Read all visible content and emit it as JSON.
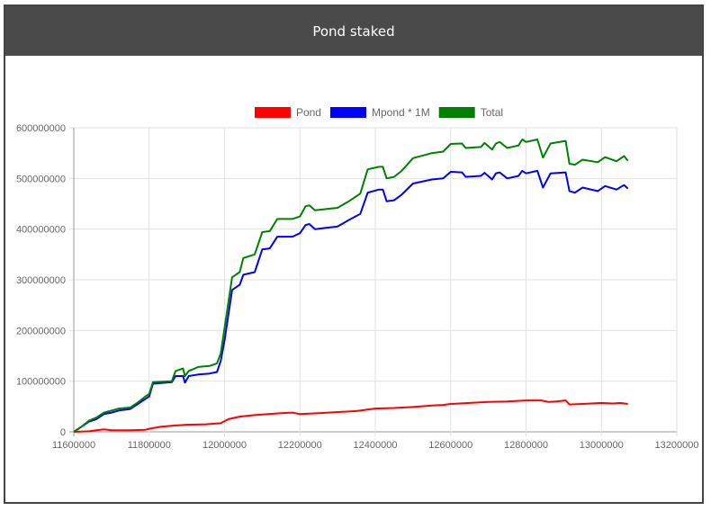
{
  "window": {
    "title": "Pond staked"
  },
  "chart_data": {
    "type": "line",
    "legend_position": "top-center",
    "grid": true,
    "xlim": [
      11600000,
      13200000
    ],
    "ylim": [
      0,
      600000000
    ],
    "x_ticks": [
      "11600000",
      "11800000",
      "12000000",
      "12200000",
      "12400000",
      "12600000",
      "12800000",
      "13000000",
      "13200000"
    ],
    "y_ticks": [
      "0",
      "100000000",
      "200000000",
      "300000000",
      "400000000",
      "500000000",
      "600000000"
    ],
    "series": [
      {
        "name": "Pond",
        "color": "#ff0000",
        "points": [
          [
            11600000,
            0
          ],
          [
            11640000,
            1000000
          ],
          [
            11660000,
            3000000
          ],
          [
            11680000,
            5000000
          ],
          [
            11700000,
            3000000
          ],
          [
            11750000,
            3000000
          ],
          [
            11790000,
            4000000
          ],
          [
            11800000,
            6000000
          ],
          [
            11830000,
            10000000
          ],
          [
            11860000,
            12000000
          ],
          [
            11900000,
            14000000
          ],
          [
            11950000,
            15000000
          ],
          [
            11990000,
            17000000
          ],
          [
            12010000,
            25000000
          ],
          [
            12040000,
            30000000
          ],
          [
            12080000,
            33000000
          ],
          [
            12100000,
            34000000
          ],
          [
            12150000,
            37000000
          ],
          [
            12180000,
            38000000
          ],
          [
            12200000,
            35000000
          ],
          [
            12250000,
            37000000
          ],
          [
            12300000,
            39000000
          ],
          [
            12350000,
            41000000
          ],
          [
            12400000,
            46000000
          ],
          [
            12450000,
            47000000
          ],
          [
            12500000,
            49000000
          ],
          [
            12550000,
            52000000
          ],
          [
            12580000,
            53000000
          ],
          [
            12600000,
            55000000
          ],
          [
            12650000,
            57000000
          ],
          [
            12700000,
            59000000
          ],
          [
            12750000,
            60000000
          ],
          [
            12800000,
            62000000
          ],
          [
            12840000,
            62000000
          ],
          [
            12860000,
            59000000
          ],
          [
            12880000,
            60000000
          ],
          [
            12905000,
            62000000
          ],
          [
            12915000,
            54000000
          ],
          [
            12950000,
            55000000
          ],
          [
            13000000,
            57000000
          ],
          [
            13030000,
            56000000
          ],
          [
            13050000,
            57000000
          ],
          [
            13070000,
            55000000
          ]
        ]
      },
      {
        "name": "Mpond * 1M",
        "color": "#0000ff",
        "points": [
          [
            11600000,
            0
          ],
          [
            11620000,
            10000000
          ],
          [
            11640000,
            20000000
          ],
          [
            11660000,
            25000000
          ],
          [
            11680000,
            35000000
          ],
          [
            11700000,
            38000000
          ],
          [
            11720000,
            42000000
          ],
          [
            11750000,
            45000000
          ],
          [
            11770000,
            55000000
          ],
          [
            11790000,
            65000000
          ],
          [
            11800000,
            70000000
          ],
          [
            11810000,
            95000000
          ],
          [
            11860000,
            98000000
          ],
          [
            11870000,
            110000000
          ],
          [
            11890000,
            110000000
          ],
          [
            11895000,
            97000000
          ],
          [
            11905000,
            110000000
          ],
          [
            11930000,
            113000000
          ],
          [
            11960000,
            115000000
          ],
          [
            11980000,
            118000000
          ],
          [
            11990000,
            140000000
          ],
          [
            12000000,
            180000000
          ],
          [
            12010000,
            230000000
          ],
          [
            12020000,
            280000000
          ],
          [
            12040000,
            290000000
          ],
          [
            12050000,
            310000000
          ],
          [
            12080000,
            315000000
          ],
          [
            12100000,
            360000000
          ],
          [
            12120000,
            362000000
          ],
          [
            12140000,
            385000000
          ],
          [
            12180000,
            385000000
          ],
          [
            12200000,
            392000000
          ],
          [
            12215000,
            408000000
          ],
          [
            12225000,
            410000000
          ],
          [
            12240000,
            400000000
          ],
          [
            12300000,
            405000000
          ],
          [
            12330000,
            418000000
          ],
          [
            12360000,
            430000000
          ],
          [
            12380000,
            472000000
          ],
          [
            12410000,
            478000000
          ],
          [
            12420000,
            478000000
          ],
          [
            12430000,
            455000000
          ],
          [
            12450000,
            457000000
          ],
          [
            12470000,
            468000000
          ],
          [
            12500000,
            490000000
          ],
          [
            12550000,
            498000000
          ],
          [
            12580000,
            500000000
          ],
          [
            12600000,
            513000000
          ],
          [
            12630000,
            512000000
          ],
          [
            12640000,
            503000000
          ],
          [
            12680000,
            505000000
          ],
          [
            12690000,
            511000000
          ],
          [
            12710000,
            498000000
          ],
          [
            12720000,
            510000000
          ],
          [
            12730000,
            512000000
          ],
          [
            12750000,
            500000000
          ],
          [
            12780000,
            505000000
          ],
          [
            12790000,
            515000000
          ],
          [
            12800000,
            510000000
          ],
          [
            12830000,
            515000000
          ],
          [
            12845000,
            482000000
          ],
          [
            12865000,
            510000000
          ],
          [
            12905000,
            512000000
          ],
          [
            12915000,
            475000000
          ],
          [
            12930000,
            472000000
          ],
          [
            12950000,
            482000000
          ],
          [
            12990000,
            475000000
          ],
          [
            13010000,
            485000000
          ],
          [
            13040000,
            478000000
          ],
          [
            13060000,
            487000000
          ],
          [
            13070000,
            480000000
          ]
        ]
      },
      {
        "name": "Total",
        "color": "#008000",
        "points": [
          [
            11600000,
            0
          ],
          [
            11620000,
            10000000
          ],
          [
            11640000,
            22000000
          ],
          [
            11660000,
            28000000
          ],
          [
            11680000,
            38000000
          ],
          [
            11700000,
            42000000
          ],
          [
            11720000,
            46000000
          ],
          [
            11750000,
            48000000
          ],
          [
            11770000,
            58000000
          ],
          [
            11790000,
            70000000
          ],
          [
            11800000,
            75000000
          ],
          [
            11810000,
            98000000
          ],
          [
            11860000,
            100000000
          ],
          [
            11870000,
            120000000
          ],
          [
            11890000,
            125000000
          ],
          [
            11895000,
            110000000
          ],
          [
            11905000,
            120000000
          ],
          [
            11930000,
            128000000
          ],
          [
            11960000,
            130000000
          ],
          [
            11980000,
            135000000
          ],
          [
            11990000,
            155000000
          ],
          [
            12000000,
            205000000
          ],
          [
            12010000,
            255000000
          ],
          [
            12020000,
            305000000
          ],
          [
            12040000,
            315000000
          ],
          [
            12050000,
            343000000
          ],
          [
            12080000,
            350000000
          ],
          [
            12100000,
            394000000
          ],
          [
            12120000,
            396000000
          ],
          [
            12140000,
            420000000
          ],
          [
            12180000,
            420000000
          ],
          [
            12200000,
            425000000
          ],
          [
            12215000,
            445000000
          ],
          [
            12225000,
            447000000
          ],
          [
            12240000,
            437000000
          ],
          [
            12300000,
            442000000
          ],
          [
            12330000,
            455000000
          ],
          [
            12360000,
            470000000
          ],
          [
            12380000,
            518000000
          ],
          [
            12410000,
            523000000
          ],
          [
            12420000,
            523000000
          ],
          [
            12430000,
            500000000
          ],
          [
            12450000,
            503000000
          ],
          [
            12470000,
            515000000
          ],
          [
            12500000,
            540000000
          ],
          [
            12550000,
            550000000
          ],
          [
            12580000,
            553000000
          ],
          [
            12600000,
            568000000
          ],
          [
            12630000,
            569000000
          ],
          [
            12640000,
            560000000
          ],
          [
            12680000,
            562000000
          ],
          [
            12690000,
            570000000
          ],
          [
            12710000,
            557000000
          ],
          [
            12720000,
            569000000
          ],
          [
            12730000,
            572000000
          ],
          [
            12750000,
            560000000
          ],
          [
            12780000,
            565000000
          ],
          [
            12790000,
            577000000
          ],
          [
            12800000,
            572000000
          ],
          [
            12830000,
            577000000
          ],
          [
            12845000,
            541000000
          ],
          [
            12865000,
            569000000
          ],
          [
            12905000,
            574000000
          ],
          [
            12915000,
            529000000
          ],
          [
            12930000,
            527000000
          ],
          [
            12950000,
            537000000
          ],
          [
            12990000,
            532000000
          ],
          [
            13010000,
            542000000
          ],
          [
            13040000,
            534000000
          ],
          [
            13060000,
            544000000
          ],
          [
            13070000,
            535000000
          ]
        ]
      }
    ]
  }
}
